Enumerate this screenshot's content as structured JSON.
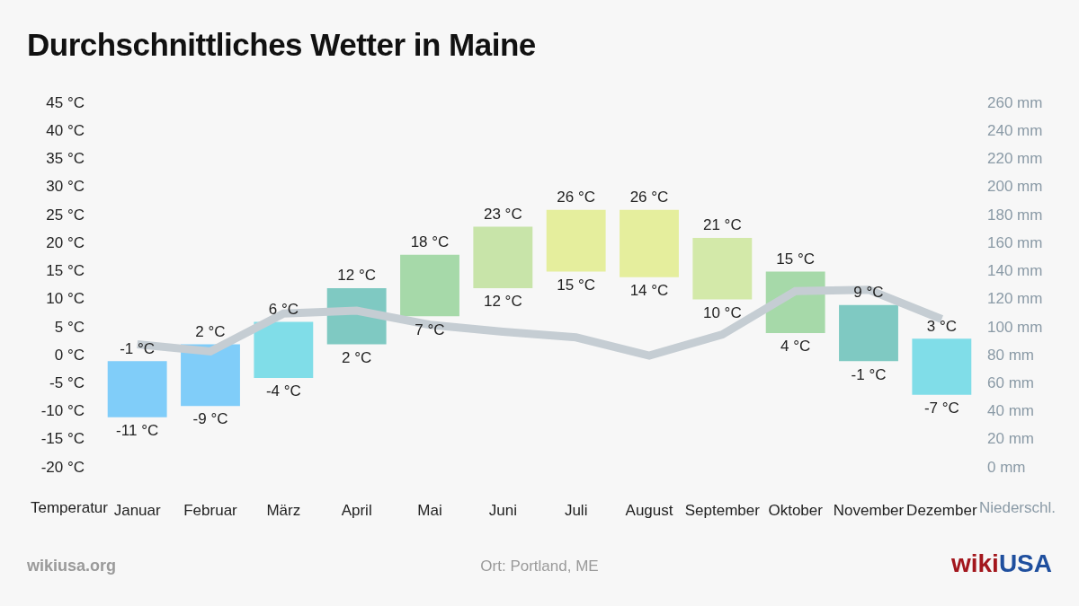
{
  "chart_data": {
    "type": "bar",
    "title": "Durchschnittliches Wetter in Maine",
    "source": "wikiusa.org",
    "location": "Ort: Portland, ME",
    "logo": [
      "wiki",
      "USA"
    ],
    "categories": [
      "Januar",
      "Februar",
      "März",
      "April",
      "Mai",
      "Juni",
      "Juli",
      "August",
      "September",
      "Oktober",
      "November",
      "Dezember"
    ],
    "grid": false,
    "data_labels": true,
    "series": [
      {
        "name": "Temperatur",
        "type": "bar",
        "colors": [
          "#80cdf9",
          "#80cdf9",
          "#80dde8",
          "#7fc9c2",
          "#a6d9a9",
          "#c8e4a9",
          "#e5ee9d",
          "#e5ee9d",
          "#d3e9a9",
          "#a6d9a9",
          "#7fc9c2",
          "#80dde8"
        ],
        "values": [
          [
            -11,
            -1
          ],
          [
            -9,
            2
          ],
          [
            -4,
            6
          ],
          [
            2,
            12
          ],
          [
            7,
            18
          ],
          [
            12,
            23
          ],
          [
            15,
            26
          ],
          [
            14,
            26
          ],
          [
            10,
            21
          ],
          [
            4,
            15
          ],
          [
            -1,
            9
          ],
          [
            -7,
            3
          ]
        ],
        "value_labels": [
          [
            "-11 °C",
            "-1 °C"
          ],
          [
            "-9 °C",
            "2 °C"
          ],
          [
            "-4 °C",
            "6 °C"
          ],
          [
            "2 °C",
            "12 °C"
          ],
          [
            "7 °C",
            "18 °C"
          ],
          [
            "12 °C",
            "23 °C"
          ],
          [
            "15 °C",
            "26 °C"
          ],
          [
            "14 °C",
            "26 °C"
          ],
          [
            "10 °C",
            "21 °C"
          ],
          [
            "4 °C",
            "15 °C"
          ],
          [
            "-1 °C",
            "9 °C"
          ],
          [
            "-7 °C",
            "3 °C"
          ]
        ]
      },
      {
        "name": "Niederschl.",
        "type": "line",
        "axis": "y2",
        "color": "#c5cdd3",
        "values": [
          88,
          83,
          110,
          112,
          102,
          97,
          93,
          80,
          95,
          126,
          127,
          106
        ]
      }
    ],
    "ylim": [
      -20,
      45
    ],
    "yticks": [
      {
        "value": -20,
        "label": "-20 °C"
      },
      {
        "value": -15,
        "label": "-15 °C"
      },
      {
        "value": -10,
        "label": "-10 °C"
      },
      {
        "value": -5,
        "label": "-5 °C"
      },
      {
        "value": 0,
        "label": "0 °C"
      },
      {
        "value": 5,
        "label": "5 °C"
      },
      {
        "value": 10,
        "label": "10 °C"
      },
      {
        "value": 15,
        "label": "15 °C"
      },
      {
        "value": 20,
        "label": "20 °C"
      },
      {
        "value": 25,
        "label": "25 °C"
      },
      {
        "value": 30,
        "label": "30 °C"
      },
      {
        "value": 35,
        "label": "35 °C"
      },
      {
        "value": 40,
        "label": "40 °C"
      },
      {
        "value": 45,
        "label": "45 °C"
      }
    ],
    "y2lim": [
      0,
      260
    ],
    "y2ticks": [
      {
        "value": 0,
        "label": "0 mm"
      },
      {
        "value": 20,
        "label": "20 mm"
      },
      {
        "value": 40,
        "label": "40 mm"
      },
      {
        "value": 60,
        "label": "60 mm"
      },
      {
        "value": 80,
        "label": "80 mm"
      },
      {
        "value": 100,
        "label": "100 mm"
      },
      {
        "value": 120,
        "label": "120 mm"
      },
      {
        "value": 140,
        "label": "140 mm"
      },
      {
        "value": 160,
        "label": "160 mm"
      },
      {
        "value": 180,
        "label": "180 mm"
      },
      {
        "value": 200,
        "label": "200 mm"
      },
      {
        "value": 220,
        "label": "220 mm"
      },
      {
        "value": 240,
        "label": "240 mm"
      },
      {
        "value": 260,
        "label": "260 mm"
      }
    ]
  }
}
